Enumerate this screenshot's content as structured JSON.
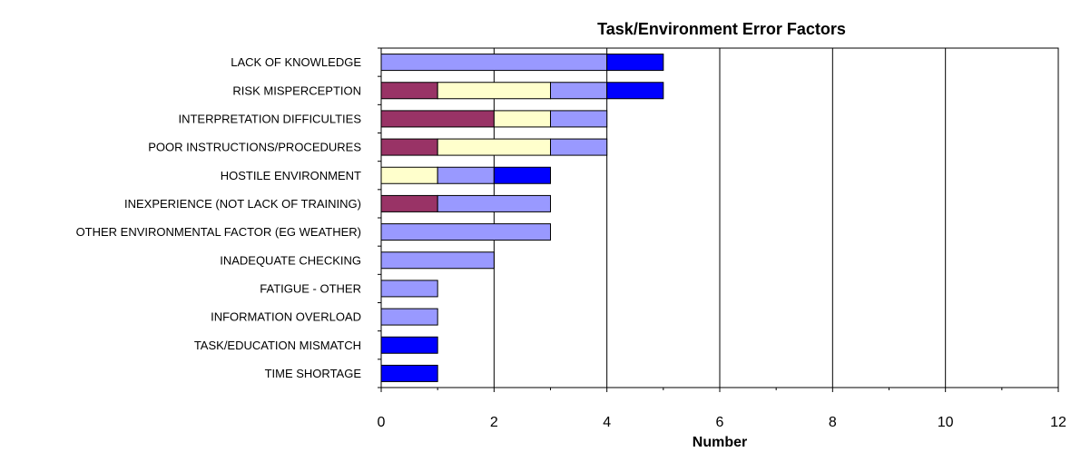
{
  "chart_data": {
    "type": "bar",
    "orientation": "horizontal",
    "stacked": true,
    "title": "Task/Environment Error Factors",
    "xlabel": "Number",
    "ylabel": "",
    "xlim": [
      0,
      12
    ],
    "xticks": [
      "0",
      "2",
      "4",
      "6",
      "8",
      "10",
      "12"
    ],
    "grid": "vertical major gridlines",
    "legend": "none",
    "categories": [
      "LACK OF KNOWLEDGE",
      "RISK MISPERCEPTION",
      "INTERPRETATION DIFFICULTIES",
      "POOR INSTRUCTIONS/PROCEDURES",
      "HOSTILE ENVIRONMENT",
      "INEXPERIENCE (NOT LACK OF TRAINING)",
      "OTHER ENVIRONMENTAL FACTOR (EG WEATHER)",
      "INADEQUATE CHECKING",
      "FATIGUE - OTHER",
      "INFORMATION OVERLOAD",
      "TASK/EDUCATION MISMATCH",
      "TIME SHORTAGE"
    ],
    "series": [
      {
        "color": "#993366",
        "values": [
          0,
          1,
          2,
          1,
          0,
          1,
          0,
          0,
          0,
          0,
          0,
          0
        ]
      },
      {
        "color": "#FFFFCC",
        "values": [
          0,
          2,
          1,
          2,
          1,
          0,
          0,
          0,
          0,
          0,
          0,
          0
        ]
      },
      {
        "color": "#9999FF",
        "values": [
          4,
          1,
          1,
          1,
          1,
          2,
          3,
          2,
          1,
          1,
          0,
          0
        ]
      },
      {
        "color": "#0000FF",
        "values": [
          1,
          1,
          0,
          0,
          1,
          0,
          0,
          0,
          0,
          0,
          1,
          1
        ]
      }
    ]
  }
}
